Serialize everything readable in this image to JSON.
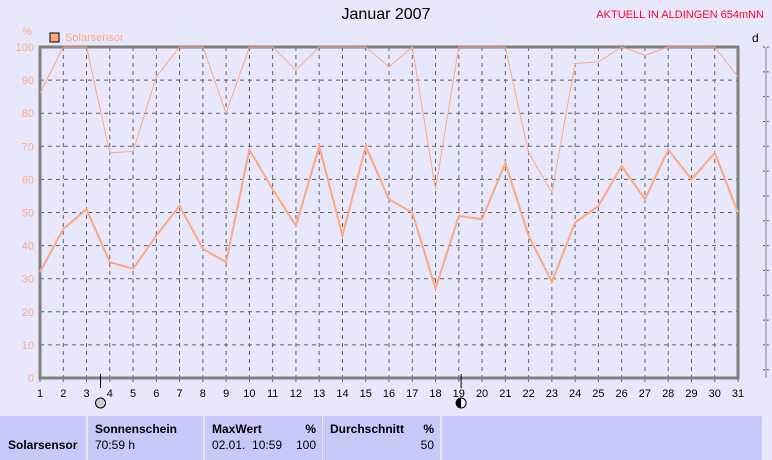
{
  "header": {
    "title": "Januar 2007",
    "status": "AKTUELL IN ALDINGEN 654mNN",
    "right_axis_label": "d"
  },
  "colors": {
    "series": "#ffa880",
    "axis": "#808080",
    "grid": "#606060",
    "status": "#ff0033"
  },
  "chart_data": {
    "type": "line",
    "title": "Januar 2007",
    "ylabel": "%",
    "ylim": [
      0,
      100
    ],
    "yticks": [
      0,
      10,
      20,
      30,
      40,
      50,
      60,
      70,
      80,
      90,
      100
    ],
    "x": [
      1,
      2,
      3,
      4,
      5,
      6,
      7,
      8,
      9,
      10,
      11,
      12,
      13,
      14,
      15,
      16,
      17,
      18,
      19,
      20,
      21,
      22,
      23,
      24,
      25,
      26,
      27,
      28,
      29,
      30,
      31
    ],
    "grid": true,
    "legend": {
      "position": "top-left",
      "entries": [
        "Solarsensor"
      ]
    },
    "series": [
      {
        "name": "Solarsensor",
        "kind": "max",
        "values": [
          86,
          100,
          100,
          68,
          68.5,
          91,
          100,
          100,
          80,
          100,
          100,
          93,
          100,
          100,
          100,
          94,
          100,
          57,
          100,
          100,
          100,
          68,
          56,
          95,
          95.5,
          100,
          97.5,
          100,
          100,
          100,
          91
        ]
      },
      {
        "name": "Solarsensor",
        "kind": "average",
        "values": [
          32,
          45,
          51,
          35,
          33,
          43,
          52,
          39,
          35,
          69,
          57,
          46,
          70,
          43,
          70,
          54,
          50,
          27,
          49,
          48,
          65,
          43,
          29,
          47,
          52,
          64,
          54,
          69,
          60,
          68,
          50
        ]
      }
    ],
    "moon_phases": [
      {
        "day": 3.6,
        "phase": "full-moon"
      },
      {
        "day": 19.1,
        "phase": "new-moon"
      }
    ]
  },
  "footer": {
    "sensor": "Solarsensor",
    "sunshine": {
      "label": "Sonnenschein",
      "value": "70:59 h"
    },
    "max": {
      "label": "MaxWert",
      "unit": "%",
      "date": "02.01.  10:59",
      "value": "100"
    },
    "avg": {
      "label": "Durchschnitt",
      "unit": "%",
      "value": "50"
    }
  }
}
